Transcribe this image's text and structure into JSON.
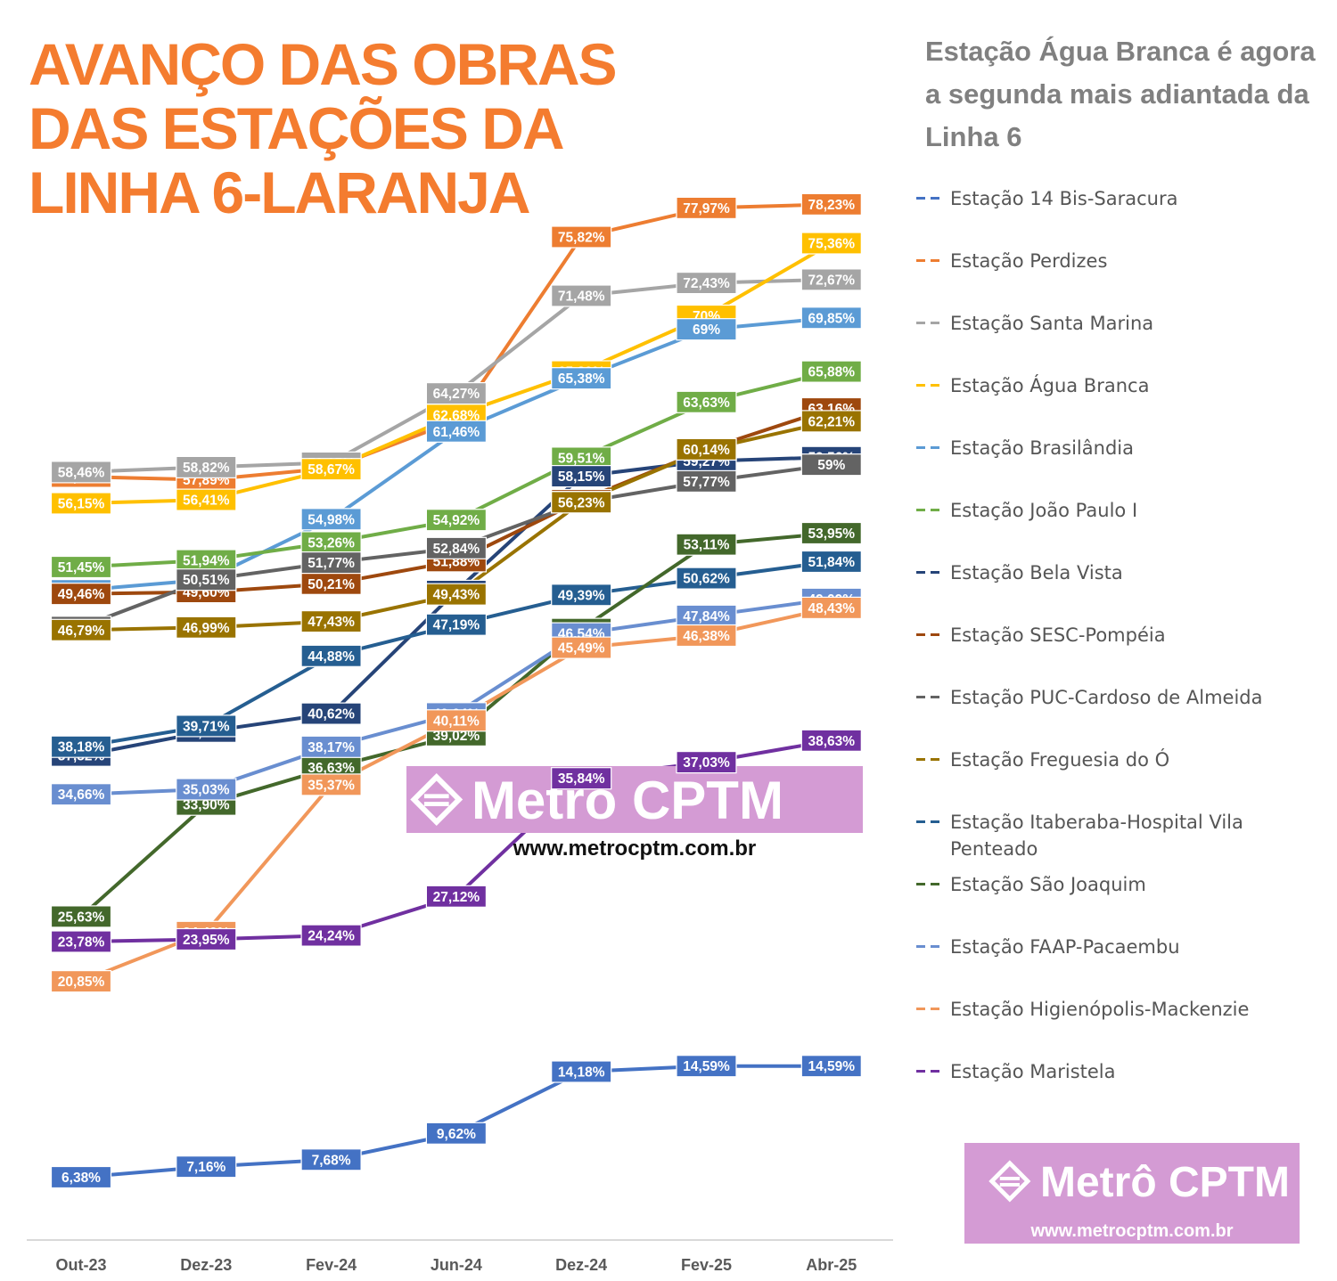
{
  "title_lines": [
    "AVANÇO DAS OBRAS",
    "DAS ESTAÇÕES DA",
    "LINHA 6-LARANJA"
  ],
  "subtitle": "Estação Água Branca é agora a segunda mais adiantada da Linha 6",
  "watermark": {
    "brand": "Metrô CPTM",
    "url": "www.metrocptm.com.br",
    "bg": "#d49bd4"
  },
  "chart_data": {
    "type": "line",
    "categories": [
      "Out-23",
      "Dez-23",
      "Fev-24",
      "Jun-24",
      "Dez-24",
      "Fev-25",
      "Abr-25"
    ],
    "ylim": [
      0,
      85
    ],
    "series": [
      {
        "name": "Estação 14 Bis-Saracura",
        "color": "#4472c4",
        "values": [
          6.38,
          7.16,
          7.68,
          9.62,
          14.18,
          14.59,
          14.59
        ],
        "labels": [
          "6,38%",
          "7,16%",
          "7,68%",
          "9,62%",
          "14,18%",
          "14,59%",
          "14,59%"
        ]
      },
      {
        "name": "Estação Perdizes",
        "color": "#ed7d31",
        "values": [
          58.12,
          57.89,
          58.75,
          62.27,
          75.82,
          77.97,
          78.23
        ],
        "labels": [
          "58,12%",
          "57,89%",
          "58,75%",
          "62,27%",
          "75,82%",
          "77,97%",
          "78,23%"
        ]
      },
      {
        "name": "Estação Santa Marina",
        "color": "#a5a5a5",
        "values": [
          58.46,
          58.82,
          59.15,
          64.27,
          71.48,
          72.43,
          72.67
        ],
        "labels": [
          "58,46%",
          "58,82%",
          "59,15%",
          "64,27%",
          "71,48%",
          "72,43%",
          "72,67%"
        ]
      },
      {
        "name": "Estação Água Branca",
        "color": "#ffc000",
        "values": [
          56.15,
          56.41,
          58.67,
          62.68,
          65.89,
          70,
          75.36
        ],
        "labels": [
          "56,15%",
          "56,41%",
          "58,67%",
          "62,68%",
          "65,89%",
          "70%",
          "75,36%"
        ]
      },
      {
        "name": "Estação Brasilândia",
        "color": "#5b9bd5",
        "values": [
          49.73,
          50.51,
          54.98,
          61.46,
          65.38,
          69,
          69.85
        ],
        "labels": [
          "49,73%",
          "",
          "54,98%",
          "61,46%",
          "65,38%",
          "69%",
          "69,85%"
        ]
      },
      {
        "name": "Estação João Paulo I",
        "color": "#70ad47",
        "values": [
          51.45,
          51.94,
          53.26,
          54.92,
          59.51,
          63.63,
          65.88
        ],
        "labels": [
          "51,45%",
          "51,94%",
          "53,26%",
          "54,92%",
          "59,51%",
          "63,63%",
          "65,88%"
        ]
      },
      {
        "name": "Estação Bela Vista",
        "color": "#264478",
        "values": [
          37.52,
          39.29,
          40.62,
          49.68,
          58.15,
          59.27,
          59.56
        ],
        "labels": [
          "37,52%",
          "39,29%",
          "40,62%",
          "49,68%",
          "58,15%",
          "59,27%",
          "59,56%"
        ]
      },
      {
        "name": "Estação SESC-Pompéia",
        "color": "#9e480e",
        "values": [
          49.46,
          49.6,
          50.21,
          51.88,
          56.38,
          60.13,
          63.16
        ],
        "labels": [
          "49,46%",
          "49,60%",
          "50,21%",
          "51,88%",
          "56,38%",
          "60,13%",
          "63,16%"
        ]
      },
      {
        "name": "Estação PUC-Cardoso de Almeida",
        "color": "#636363",
        "values": [
          47.02,
          50.51,
          51.77,
          52.84,
          56.24,
          57.77,
          59
        ],
        "labels": [
          "47,02%",
          "50,51%",
          "51,77%",
          "52,84%",
          "56,24%",
          "57,77%",
          "59%"
        ]
      },
      {
        "name": "Estação Freguesia do Ó",
        "color": "#997300",
        "values": [
          46.79,
          46.99,
          47.43,
          49.43,
          56.23,
          60.14,
          62.21
        ],
        "labels": [
          "46,79%",
          "46,99%",
          "47,43%",
          "49,43%",
          "56,23%",
          "60,14%",
          "62,21%"
        ]
      },
      {
        "name": "Estação Itaberaba-Hospital Vila Penteado",
        "color": "#255e91",
        "values": [
          38.18,
          39.71,
          44.88,
          47.19,
          49.39,
          50.62,
          51.84
        ],
        "labels": [
          "38,18%",
          "39,71%",
          "44,88%",
          "47,19%",
          "49,39%",
          "50,62%",
          "51,84%"
        ]
      },
      {
        "name": "Estação São Joaquim",
        "color": "#43682b",
        "values": [
          25.63,
          33.9,
          36.63,
          39.02,
          46.87,
          53.11,
          53.95
        ],
        "labels": [
          "25,63%",
          "33,90%",
          "36,63%",
          "39,02%",
          "46,87%",
          "53,11%",
          "53,95%"
        ]
      },
      {
        "name": "Estação FAAP-Pacaembu",
        "color": "#698ed0",
        "values": [
          34.66,
          35.03,
          38.17,
          40.64,
          46.54,
          47.84,
          49.09
        ],
        "labels": [
          "34,66%",
          "35,03%",
          "38,17%",
          "40,64%",
          "46,54%",
          "47,84%",
          "49,09%"
        ]
      },
      {
        "name": "Estação Higienópolis-Mackenzie",
        "color": "#f1975a",
        "values": [
          20.85,
          24.49,
          35.37,
          40.11,
          45.49,
          46.38,
          48.43
        ],
        "labels": [
          "20,85%",
          "24,49%",
          "35,37%",
          "40,11%",
          "45,49%",
          "46,38%",
          "48,43%"
        ]
      },
      {
        "name": "Estação Maristela",
        "color": "#7030a0",
        "values": [
          23.78,
          23.95,
          24.24,
          27.12,
          35.84,
          37.03,
          38.63
        ],
        "labels": [
          "23,78%",
          "23,95%",
          "24,24%",
          "27,12%",
          "35,84%",
          "37,03%",
          "38,63%"
        ]
      }
    ]
  }
}
